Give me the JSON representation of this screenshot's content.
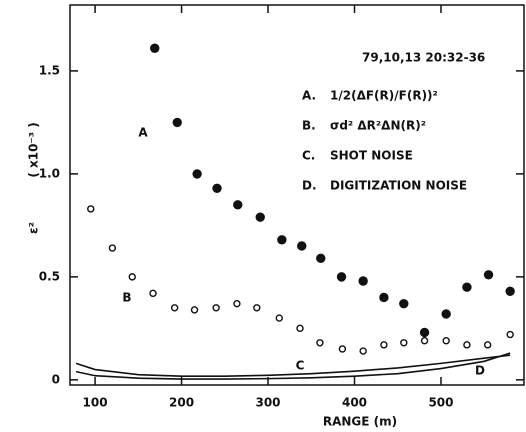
{
  "chart_data": {
    "type": "scatter",
    "title": "79,10,13   20:32-36",
    "xlabel": "RANGE   (m)",
    "ylabel": "ε²",
    "yunit": "( x10⁻³ )",
    "xlim": [
      71,
      596
    ],
    "ylim": [
      -0.025,
      1.82
    ],
    "xticks": [
      100,
      200,
      300,
      400,
      500
    ],
    "yticks": [
      0,
      0.5,
      {
        "value": 1,
        "label": "1.0"
      },
      1.5
    ],
    "grid": false,
    "series": [
      {
        "name": "A",
        "legend_key": "A.",
        "legend_text": "1/2(ΔF(R)/F(R))²",
        "style": "filled-circle",
        "color": "#111111",
        "x": [
          169,
          195,
          218,
          241,
          265,
          291,
          316,
          339,
          361,
          385,
          410,
          434,
          457,
          481,
          506,
          530,
          555,
          580
        ],
        "values": [
          1.61,
          1.25,
          1.0,
          0.93,
          0.85,
          0.79,
          0.68,
          0.65,
          0.59,
          0.5,
          0.48,
          0.4,
          0.37,
          0.23,
          0.32,
          0.45,
          0.51,
          0.43
        ]
      },
      {
        "name": "B",
        "legend_key": "B.",
        "legend_text": "σd² ΔR²ΔN(R)²",
        "style": "open-circle",
        "color": "#111111",
        "x": [
          95,
          120,
          143,
          167,
          192,
          215,
          240,
          264,
          287,
          313,
          337,
          360,
          386,
          410,
          434,
          457,
          481,
          506,
          530,
          554,
          580
        ],
        "values": [
          0.83,
          0.64,
          0.5,
          0.42,
          0.35,
          0.34,
          0.35,
          0.37,
          0.35,
          0.3,
          0.25,
          0.18,
          0.15,
          0.14,
          0.17,
          0.18,
          0.19,
          0.19,
          0.17,
          0.17,
          0.22
        ]
      },
      {
        "name": "C",
        "legend_key": "C.",
        "legend_text": "SHOT NOISE",
        "style": "line",
        "color": "#111111",
        "x": [
          78,
          100,
          150,
          200,
          250,
          300,
          350,
          400,
          450,
          500,
          550,
          580
        ],
        "values": [
          0.08,
          0.05,
          0.025,
          0.018,
          0.018,
          0.022,
          0.03,
          0.042,
          0.058,
          0.08,
          0.105,
          0.12
        ]
      },
      {
        "name": "D",
        "legend_key": "D.",
        "legend_text": "DIGITIZATION NOISE",
        "style": "line",
        "color": "#111111",
        "x": [
          78,
          100,
          150,
          200,
          250,
          300,
          350,
          400,
          450,
          500,
          550,
          580
        ],
        "values": [
          0.04,
          0.02,
          0.008,
          0.004,
          0.004,
          0.006,
          0.01,
          0.018,
          0.03,
          0.055,
          0.09,
          0.13
        ]
      }
    ]
  }
}
